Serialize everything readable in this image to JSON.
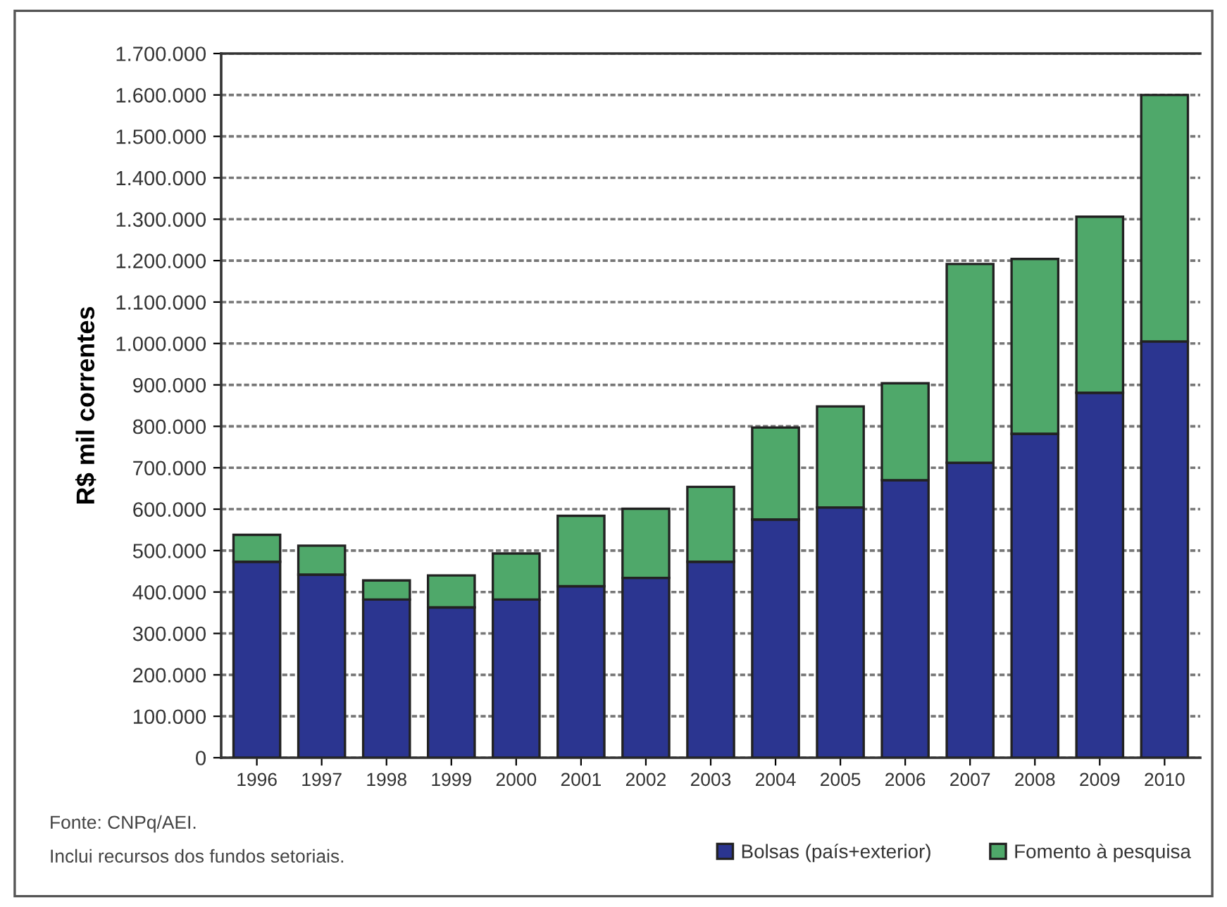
{
  "chart_data": {
    "type": "bar",
    "stacked": true,
    "ylabel": "R$ mil correntes",
    "categories": [
      "1996",
      "1997",
      "1998",
      "1999",
      "2000",
      "2001",
      "2002",
      "2003",
      "2004",
      "2005",
      "2006",
      "2007",
      "2008",
      "2009",
      "2010"
    ],
    "series": [
      {
        "name": "Bolsas (país+exterior)",
        "color": "#2b3590",
        "values": [
          473000,
          442000,
          382000,
          363000,
          382000,
          414000,
          434000,
          473000,
          575000,
          604000,
          670000,
          712000,
          782000,
          881000,
          1005000
        ]
      },
      {
        "name": "Fomento à pesquisa",
        "color": "#4fa86a",
        "values": [
          65000,
          70000,
          46000,
          77000,
          111000,
          170000,
          167000,
          181000,
          222000,
          244000,
          234000,
          480000,
          422000,
          425000,
          595000
        ]
      }
    ],
    "ylim": [
      0,
      1700000
    ],
    "yticks": [
      0,
      {
        "value": 100000,
        "label": "100.000"
      },
      {
        "value": 200000,
        "label": "200.000"
      },
      {
        "value": 300000,
        "label": "300.000"
      },
      {
        "value": 400000,
        "label": "400.000"
      },
      {
        "value": 500000,
        "label": "500.000"
      },
      {
        "value": 600000,
        "label": "600.000"
      },
      {
        "value": 700000,
        "label": "700.000"
      },
      {
        "value": 800000,
        "label": "800.000"
      },
      {
        "value": 900000,
        "label": "900.000"
      },
      {
        "value": 1000000,
        "label": "1.000.000"
      },
      {
        "value": 1100000,
        "label": "1.100.000"
      },
      {
        "value": 1200000,
        "label": "1.200.000"
      },
      {
        "value": 1300000,
        "label": "1.300.000"
      },
      {
        "value": 1400000,
        "label": "1.400.000"
      },
      {
        "value": 1500000,
        "label": "1.500.000"
      },
      {
        "value": 1600000,
        "label": "1.600.000"
      },
      {
        "value": 1700000,
        "label": "1.700.000"
      }
    ],
    "grid": "y",
    "legend": "bottom right",
    "annotations": [
      "Fonte: CNPq/AEI.",
      "Inclui recursos dos fundos setoriais."
    ]
  }
}
